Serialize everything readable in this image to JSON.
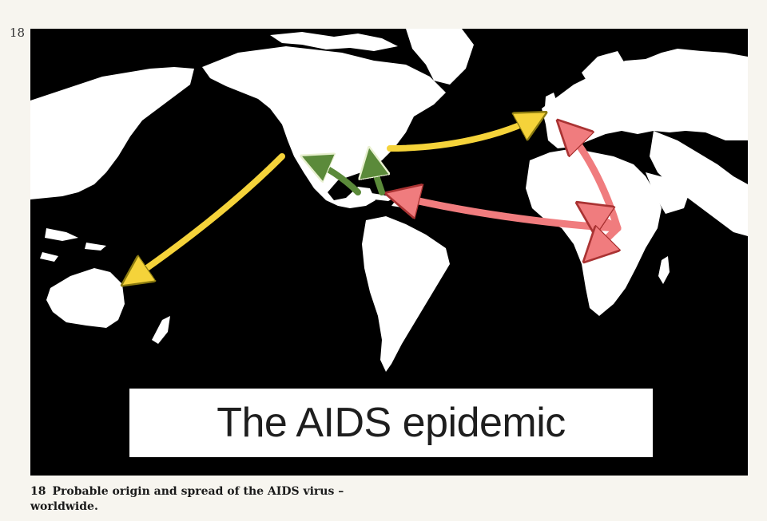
{
  "page_number": "18",
  "title": "The AIDS epidemic",
  "caption": {
    "number": "18",
    "text": "Probable origin and spread of the AIDS virus – worldwide."
  },
  "legend_colors": {
    "origin_spread": "#f07c7e",
    "secondary_spread": "#f5d33a",
    "caribbean_spread": "#5b8a3a",
    "land": "#ffffff",
    "ocean": "#000000"
  },
  "routes": [
    {
      "from": "Central Africa",
      "to": "Caribbean",
      "color_key": "origin_spread"
    },
    {
      "from": "Central Africa",
      "to": "Europe",
      "color_key": "origin_spread"
    },
    {
      "from": "Central Africa",
      "to": "West Africa",
      "color_key": "origin_spread"
    },
    {
      "from": "Central Africa",
      "to": "Southern Africa",
      "color_key": "origin_spread"
    },
    {
      "from": "Caribbean",
      "to": "North America (west)",
      "color_key": "caribbean_spread"
    },
    {
      "from": "Caribbean",
      "to": "North America (east)",
      "color_key": "caribbean_spread"
    },
    {
      "from": "North America",
      "to": "Europe",
      "color_key": "secondary_spread"
    },
    {
      "from": "North America",
      "to": "Australia",
      "color_key": "secondary_spread"
    }
  ]
}
